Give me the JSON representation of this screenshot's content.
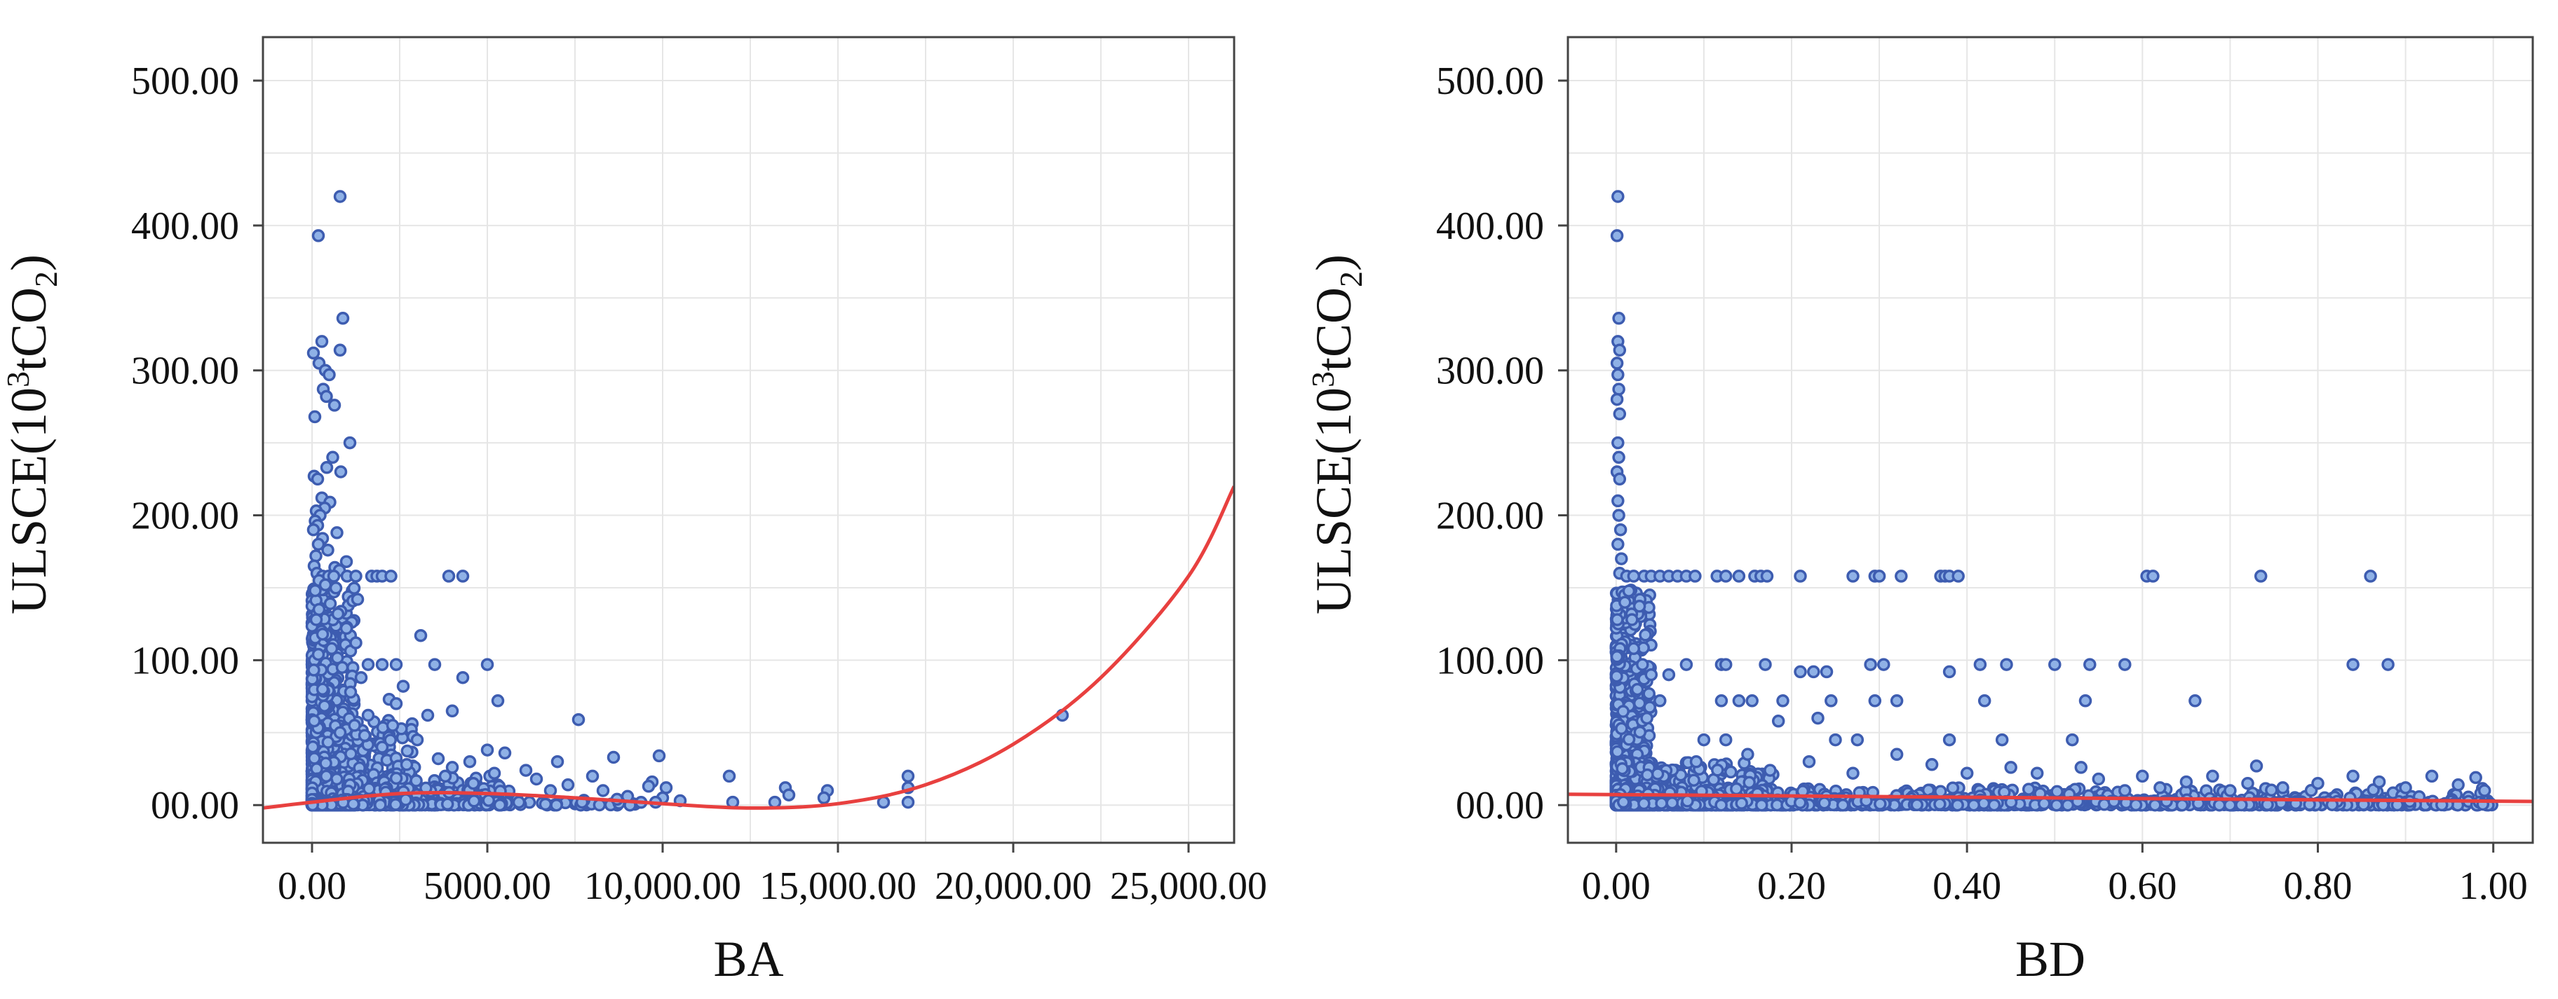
{
  "chart_data": [
    {
      "type": "scatter",
      "xlabel": "BA",
      "ylabel_html": "ULSCE(10³tCO₂)",
      "ylabel_parts": [
        "ULSCE(10",
        "3",
        "tCO",
        "2",
        ")"
      ],
      "xlim": [
        -1400,
        26300
      ],
      "ylim": [
        -26,
        530
      ],
      "xticks": [
        0,
        5000,
        10000,
        15000,
        20000,
        25000
      ],
      "xtick_labels": [
        "0.00",
        "5000.00",
        "10,000.00",
        "15,000.00",
        "20,000.00",
        "25,000.00"
      ],
      "yticks": [
        0,
        100,
        200,
        300,
        400,
        500
      ],
      "ytick_labels": [
        "00.00",
        "100.00",
        "200.00",
        "300.00",
        "400.00",
        "500.00"
      ],
      "grid": true,
      "point_color": "#8fb1e6",
      "point_edge_color": "#3d5cb0",
      "trend_color": "#e8403f",
      "trend": {
        "x": [
          -1400,
          0,
          2500,
          5000,
          7500,
          10000,
          12500,
          15000,
          17500,
          20000,
          22500,
          25000,
          26300
        ],
        "y": [
          -2,
          2,
          8,
          8,
          5,
          1,
          -2,
          1,
          14,
          42,
          88,
          158,
          220
        ]
      },
      "points": [
        [
          800,
          420
        ],
        [
          180,
          393
        ],
        [
          880,
          336
        ],
        [
          280,
          320
        ],
        [
          800,
          314
        ],
        [
          40,
          312
        ],
        [
          200,
          305
        ],
        [
          380,
          300
        ],
        [
          490,
          297
        ],
        [
          320,
          287
        ],
        [
          410,
          282
        ],
        [
          640,
          276
        ],
        [
          80,
          268
        ],
        [
          1080,
          250
        ],
        [
          590,
          240
        ],
        [
          420,
          233
        ],
        [
          820,
          230
        ],
        [
          60,
          227
        ],
        [
          160,
          225
        ],
        [
          280,
          212
        ],
        [
          510,
          209
        ],
        [
          360,
          205
        ],
        [
          120,
          203
        ],
        [
          230,
          200
        ],
        [
          90,
          196
        ],
        [
          160,
          193
        ],
        [
          40,
          190
        ],
        [
          710,
          188
        ],
        [
          300,
          184
        ],
        [
          180,
          180
        ],
        [
          450,
          176
        ],
        [
          110,
          172
        ],
        [
          980,
          168
        ],
        [
          60,
          165
        ],
        [
          650,
          164
        ],
        [
          780,
          162
        ],
        [
          140,
          160
        ],
        [
          300,
          158
        ],
        [
          470,
          158
        ],
        [
          620,
          158
        ],
        [
          1000,
          158
        ],
        [
          1250,
          158
        ],
        [
          1700,
          158
        ],
        [
          1850,
          158
        ],
        [
          2000,
          158
        ],
        [
          2250,
          158
        ],
        [
          3900,
          158
        ],
        [
          4300,
          158
        ],
        [
          200,
          155
        ],
        [
          380,
          152
        ],
        [
          90,
          148
        ],
        [
          1300,
          142
        ],
        [
          520,
          139
        ],
        [
          200,
          135
        ],
        [
          740,
          132
        ],
        [
          120,
          128
        ],
        [
          980,
          122
        ],
        [
          300,
          118
        ],
        [
          3100,
          117
        ],
        [
          1250,
          112
        ],
        [
          560,
          108
        ],
        [
          180,
          104
        ],
        [
          3500,
          97
        ],
        [
          5000,
          97
        ],
        [
          1600,
          97
        ],
        [
          2000,
          97
        ],
        [
          2400,
          97
        ],
        [
          860,
          95
        ],
        [
          4300,
          88
        ],
        [
          1400,
          88
        ],
        [
          2600,
          82
        ],
        [
          300,
          80
        ],
        [
          1100,
          78
        ],
        [
          2200,
          73
        ],
        [
          5300,
          72
        ],
        [
          2400,
          70
        ],
        [
          3300,
          62
        ],
        [
          1600,
          62
        ],
        [
          4000,
          65
        ],
        [
          7600,
          59
        ],
        [
          21400,
          62
        ],
        [
          2300,
          55
        ],
        [
          800,
          50
        ],
        [
          1500,
          48
        ],
        [
          3000,
          45
        ],
        [
          2000,
          40
        ],
        [
          5000,
          38
        ],
        [
          5500,
          36
        ],
        [
          8600,
          33
        ],
        [
          9900,
          34
        ],
        [
          3600,
          32
        ],
        [
          4500,
          30
        ],
        [
          7000,
          30
        ],
        [
          2700,
          28
        ],
        [
          4000,
          26
        ],
        [
          6100,
          24
        ],
        [
          11900,
          20
        ],
        [
          17000,
          20
        ],
        [
          5200,
          22
        ],
        [
          3800,
          20
        ],
        [
          8000,
          20
        ],
        [
          6400,
          18
        ],
        [
          9700,
          16
        ],
        [
          13500,
          12
        ],
        [
          17000,
          12
        ],
        [
          4600,
          15
        ],
        [
          7300,
          14
        ],
        [
          9600,
          13
        ],
        [
          10100,
          12
        ],
        [
          8300,
          10
        ],
        [
          14700,
          10
        ],
        [
          6800,
          10
        ],
        [
          13600,
          7
        ],
        [
          14600,
          5
        ],
        [
          9000,
          6
        ],
        [
          10000,
          5
        ],
        [
          8700,
          4
        ],
        [
          10500,
          3
        ],
        [
          13200,
          2
        ],
        [
          16300,
          2
        ],
        [
          17000,
          2
        ],
        [
          5900,
          2
        ],
        [
          7700,
          2
        ],
        [
          9800,
          2
        ],
        [
          12000,
          2
        ]
      ],
      "dense_clusters": [
        {
          "x": [
            0,
            1200
          ],
          "y": [
            0,
            150
          ],
          "count": 900
        },
        {
          "x": [
            0,
            3000
          ],
          "y": [
            0,
            60
          ],
          "count": 500
        },
        {
          "x": [
            0,
            5800
          ],
          "y": [
            0,
            20
          ],
          "count": 400
        },
        {
          "x": [
            0,
            9500
          ],
          "y": [
            0,
            4
          ],
          "count": 160
        }
      ]
    },
    {
      "type": "scatter",
      "xlabel": "BD",
      "ylabel_parts": [
        "ULSCE(10",
        "3",
        "tCO",
        "2",
        ")"
      ],
      "xlim": [
        -0.055,
        1.045
      ],
      "ylim": [
        -26,
        530
      ],
      "xticks": [
        0,
        0.2,
        0.4,
        0.6,
        0.8,
        1.0
      ],
      "xtick_labels": [
        "0.00",
        "0.20",
        "0.40",
        "0.60",
        "0.80",
        "1.00"
      ],
      "yticks": [
        0,
        100,
        200,
        300,
        400,
        500
      ],
      "ytick_labels": [
        "00.00",
        "100.00",
        "200.00",
        "300.00",
        "400.00",
        "500.00"
      ],
      "grid": true,
      "point_color": "#8fb1e6",
      "point_edge_color": "#3d5cb0",
      "trend_color": "#e8403f",
      "trend": {
        "x": [
          -0.055,
          1.045
        ],
        "y": [
          7.5,
          2.5
        ]
      },
      "points": [
        [
          0.002,
          420
        ],
        [
          0.001,
          393
        ],
        [
          0.003,
          336
        ],
        [
          0.002,
          320
        ],
        [
          0.004,
          314
        ],
        [
          0.001,
          305
        ],
        [
          0.002,
          297
        ],
        [
          0.003,
          287
        ],
        [
          0.001,
          280
        ],
        [
          0.004,
          270
        ],
        [
          0.002,
          250
        ],
        [
          0.003,
          240
        ],
        [
          0.001,
          230
        ],
        [
          0.004,
          225
        ],
        [
          0.002,
          210
        ],
        [
          0.003,
          200
        ],
        [
          0.005,
          190
        ],
        [
          0.002,
          180
        ],
        [
          0.006,
          170
        ],
        [
          0.004,
          160
        ],
        [
          0.012,
          158
        ],
        [
          0.02,
          158
        ],
        [
          0.032,
          158
        ],
        [
          0.04,
          158
        ],
        [
          0.05,
          158
        ],
        [
          0.06,
          158
        ],
        [
          0.07,
          158
        ],
        [
          0.08,
          158
        ],
        [
          0.09,
          158
        ],
        [
          0.115,
          158
        ],
        [
          0.125,
          158
        ],
        [
          0.14,
          158
        ],
        [
          0.158,
          158
        ],
        [
          0.165,
          158
        ],
        [
          0.172,
          158
        ],
        [
          0.21,
          158
        ],
        [
          0.27,
          158
        ],
        [
          0.295,
          158
        ],
        [
          0.3,
          158
        ],
        [
          0.325,
          158
        ],
        [
          0.37,
          158
        ],
        [
          0.375,
          158
        ],
        [
          0.38,
          158
        ],
        [
          0.39,
          158
        ],
        [
          0.605,
          158
        ],
        [
          0.612,
          158
        ],
        [
          0.735,
          158
        ],
        [
          0.86,
          158
        ],
        [
          0.01,
          140
        ],
        [
          0.018,
          128
        ],
        [
          0.02,
          108
        ],
        [
          0.03,
          97
        ],
        [
          0.08,
          97
        ],
        [
          0.12,
          97
        ],
        [
          0.125,
          97
        ],
        [
          0.17,
          97
        ],
        [
          0.29,
          97
        ],
        [
          0.305,
          97
        ],
        [
          0.415,
          97
        ],
        [
          0.445,
          97
        ],
        [
          0.5,
          97
        ],
        [
          0.54,
          97
        ],
        [
          0.58,
          97
        ],
        [
          0.84,
          97
        ],
        [
          0.88,
          97
        ],
        [
          0.04,
          90
        ],
        [
          0.06,
          90
        ],
        [
          0.21,
          92
        ],
        [
          0.225,
          92
        ],
        [
          0.24,
          92
        ],
        [
          0.38,
          92
        ],
        [
          0.05,
          72
        ],
        [
          0.12,
          72
        ],
        [
          0.14,
          72
        ],
        [
          0.155,
          72
        ],
        [
          0.19,
          72
        ],
        [
          0.245,
          72
        ],
        [
          0.295,
          72
        ],
        [
          0.32,
          72
        ],
        [
          0.42,
          72
        ],
        [
          0.535,
          72
        ],
        [
          0.66,
          72
        ],
        [
          0.035,
          60
        ],
        [
          0.23,
          60
        ],
        [
          0.185,
          58
        ],
        [
          0.1,
          45
        ],
        [
          0.125,
          45
        ],
        [
          0.25,
          45
        ],
        [
          0.275,
          45
        ],
        [
          0.38,
          45
        ],
        [
          0.44,
          45
        ],
        [
          0.52,
          45
        ],
        [
          0.15,
          35
        ],
        [
          0.32,
          35
        ],
        [
          0.22,
          30
        ],
        [
          0.36,
          28
        ],
        [
          0.45,
          26
        ],
        [
          0.53,
          26
        ],
        [
          0.73,
          27
        ],
        [
          0.27,
          22
        ],
        [
          0.4,
          22
        ],
        [
          0.48,
          22
        ],
        [
          0.6,
          20
        ],
        [
          0.68,
          20
        ],
        [
          0.84,
          20
        ],
        [
          0.93,
          20
        ],
        [
          0.98,
          19
        ],
        [
          0.55,
          18
        ],
        [
          0.65,
          16
        ],
        [
          0.72,
          15
        ],
        [
          0.8,
          15
        ],
        [
          0.87,
          16
        ],
        [
          0.96,
          14
        ],
        [
          0.9,
          12
        ],
        [
          0.62,
          12
        ],
        [
          0.76,
          12
        ],
        [
          0.99,
          10
        ],
        [
          0.58,
          10
        ],
        [
          0.7,
          10
        ]
      ],
      "dense_clusters": [
        {
          "x": [
            0,
            0.04
          ],
          "y": [
            0,
            150
          ],
          "count": 700
        },
        {
          "x": [
            0,
            0.18
          ],
          "y": [
            0,
            30
          ],
          "count": 650
        },
        {
          "x": [
            0,
            1.0
          ],
          "y": [
            0,
            12
          ],
          "count": 900
        },
        {
          "x": [
            0,
            1.0
          ],
          "y": [
            0,
            3
          ],
          "count": 500
        }
      ]
    }
  ]
}
